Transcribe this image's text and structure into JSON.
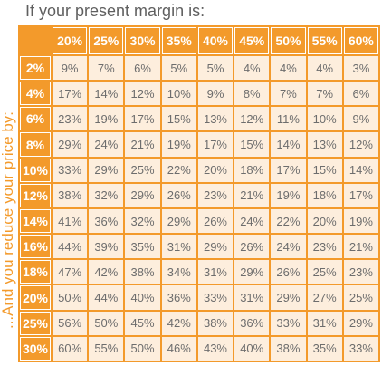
{
  "top_label": "If your present margin is:",
  "side_label": "...And you reduce your price by:",
  "colors": {
    "accent": "#f39a2b",
    "cell_bg": "#fdeedd",
    "text": "#6d6d6d",
    "header_text": "#ffffff"
  },
  "table": {
    "columns": [
      "20%",
      "25%",
      "30%",
      "35%",
      "40%",
      "45%",
      "50%",
      "55%",
      "60%"
    ],
    "rows": [
      {
        "label": "2%",
        "cells": [
          "9%",
          "7%",
          "6%",
          "5%",
          "5%",
          "4%",
          "4%",
          "4%",
          "3%"
        ]
      },
      {
        "label": "4%",
        "cells": [
          "17%",
          "14%",
          "12%",
          "10%",
          "9%",
          "8%",
          "7%",
          "7%",
          "6%"
        ]
      },
      {
        "label": "6%",
        "cells": [
          "23%",
          "19%",
          "17%",
          "15%",
          "13%",
          "12%",
          "11%",
          "10%",
          "9%"
        ]
      },
      {
        "label": "8%",
        "cells": [
          "29%",
          "24%",
          "21%",
          "19%",
          "17%",
          "15%",
          "14%",
          "13%",
          "12%"
        ]
      },
      {
        "label": "10%",
        "cells": [
          "33%",
          "29%",
          "25%",
          "22%",
          "20%",
          "18%",
          "17%",
          "15%",
          "14%"
        ]
      },
      {
        "label": "12%",
        "cells": [
          "38%",
          "32%",
          "29%",
          "26%",
          "23%",
          "21%",
          "19%",
          "18%",
          "17%"
        ]
      },
      {
        "label": "14%",
        "cells": [
          "41%",
          "36%",
          "32%",
          "29%",
          "26%",
          "24%",
          "22%",
          "20%",
          "19%"
        ]
      },
      {
        "label": "16%",
        "cells": [
          "44%",
          "39%",
          "35%",
          "31%",
          "29%",
          "26%",
          "24%",
          "23%",
          "21%"
        ]
      },
      {
        "label": "18%",
        "cells": [
          "47%",
          "42%",
          "38%",
          "34%",
          "31%",
          "29%",
          "26%",
          "25%",
          "23%"
        ]
      },
      {
        "label": "20%",
        "cells": [
          "50%",
          "44%",
          "40%",
          "36%",
          "33%",
          "31%",
          "29%",
          "27%",
          "25%"
        ]
      },
      {
        "label": "25%",
        "cells": [
          "56%",
          "50%",
          "45%",
          "42%",
          "38%",
          "36%",
          "33%",
          "31%",
          "29%"
        ]
      },
      {
        "label": "30%",
        "cells": [
          "60%",
          "55%",
          "50%",
          "46%",
          "43%",
          "40%",
          "38%",
          "35%",
          "33%"
        ]
      }
    ]
  }
}
